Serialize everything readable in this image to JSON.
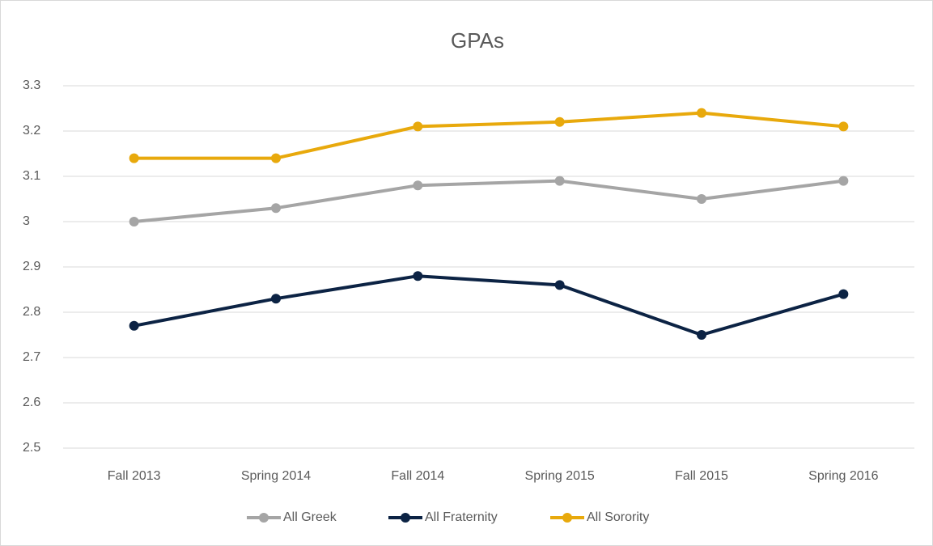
{
  "chart_data": {
    "type": "line",
    "title": "GPAs",
    "categories": [
      "Fall 2013",
      "Spring 2014",
      "Fall 2014",
      "Spring 2015",
      "Fall 2015",
      "Spring 2016"
    ],
    "series": [
      {
        "name": "All Greek",
        "color": "#a5a5a5",
        "values": [
          3.0,
          3.03,
          3.08,
          3.09,
          3.05,
          3.09
        ]
      },
      {
        "name": "All Fraternity",
        "color": "#0c2344",
        "values": [
          2.77,
          2.83,
          2.88,
          2.86,
          2.75,
          2.84
        ]
      },
      {
        "name": "All Sorority",
        "color": "#e8a90c",
        "values": [
          3.14,
          3.14,
          3.21,
          3.22,
          3.24,
          3.21
        ]
      }
    ],
    "ylim": [
      2.5,
      3.3
    ],
    "yticks": [
      2.5,
      2.6,
      2.7,
      2.8,
      2.9,
      3,
      3.1,
      3.2,
      3.3
    ],
    "grid": true,
    "legend": "bottom"
  }
}
